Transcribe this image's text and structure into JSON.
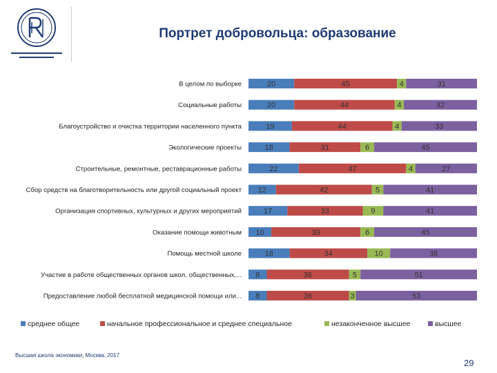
{
  "header": {
    "title": "Портрет добровольца: образование"
  },
  "footer": {
    "text": "Высшая школа экономики, Москва, 2017",
    "page_number": "29"
  },
  "colors": {
    "title": "#1f3b73",
    "series": [
      "#4a7ebb",
      "#be4b48",
      "#98b954",
      "#7d60a0"
    ]
  },
  "chart_data": {
    "type": "bar",
    "orientation": "horizontal",
    "stacked": true,
    "categories": [
      "В целом по выборке",
      "Социальные работы",
      "Благоустройство и очистка территории населенного пункта",
      "Экологические проекты",
      "Строительные, ремонтные, реставрационные работы",
      "Сбор средств на благотворительность или другой социальный проект",
      "Организация спортивных, культурных и других мероприятий",
      "Оказание помощи животным",
      "Помощь местной школе",
      "Участие в работе общественных органов школ, общественных,...",
      "Предоставление любой бесплатной медицинской помощи или..."
    ],
    "series": [
      {
        "name": "среднее общее",
        "values": [
          20,
          20,
          19,
          18,
          22,
          12,
          17,
          10,
          18,
          8,
          8
        ]
      },
      {
        "name": "начальное профессиональное и среднее специальное",
        "values": [
          45,
          44,
          44,
          31,
          47,
          42,
          33,
          39,
          34,
          36,
          36
        ]
      },
      {
        "name": "незаконченное высшее",
        "values": [
          4,
          4,
          4,
          6,
          4,
          5,
          9,
          6,
          10,
          5,
          3
        ]
      },
      {
        "name": "высшее",
        "values": [
          31,
          32,
          33,
          45,
          27,
          41,
          41,
          45,
          38,
          51,
          53
        ]
      }
    ],
    "legend_position": "bottom",
    "grid": false
  }
}
